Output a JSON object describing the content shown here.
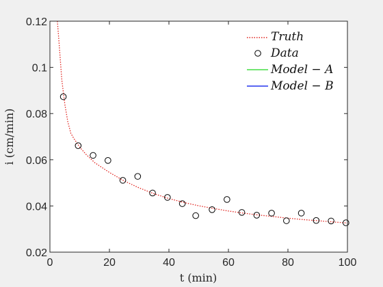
{
  "chart_data": {
    "type": "line",
    "xlabel": "t (min)",
    "ylabel": "i (cm/min)",
    "xlim": [
      0,
      100
    ],
    "ylim": [
      0.02,
      0.12
    ],
    "x_ticks": [
      0,
      20,
      40,
      60,
      80,
      100
    ],
    "y_ticks": [
      0.02,
      0.04,
      0.06,
      0.08,
      0.1,
      0.12
    ],
    "x_tick_labels": [
      "0",
      "20",
      "40",
      "60",
      "80",
      "100"
    ],
    "y_tick_labels": [
      "0.02",
      "0.04",
      "0.06",
      "0.08",
      "0.1",
      "0.12"
    ],
    "grid": false,
    "legend_position": "top-right",
    "series": [
      {
        "name": "Truth",
        "style": "dotted-line",
        "color": "#e0201b",
        "x": [
          2.5,
          3,
          4,
          5,
          6,
          7,
          8,
          10,
          12,
          15,
          20,
          25,
          30,
          35,
          40,
          45,
          50,
          55,
          60,
          65,
          70,
          75,
          80,
          85,
          90,
          95,
          100
        ],
        "y": [
          0.12,
          0.112,
          0.0945,
          0.084,
          0.0765,
          0.0715,
          0.0693,
          0.0655,
          0.0625,
          0.0588,
          0.0545,
          0.0508,
          0.0478,
          0.0453,
          0.0432,
          0.0415,
          0.0401,
          0.0389,
          0.0378,
          0.0369,
          0.0361,
          0.0354,
          0.0347,
          0.0341,
          0.0336,
          0.0331,
          0.0326
        ]
      },
      {
        "name": "Data",
        "style": "open-circle-markers",
        "color": "#000000",
        "x": [
          4.5,
          9.5,
          14.5,
          19.5,
          24.5,
          29.5,
          34.5,
          39.5,
          44.5,
          49,
          54.5,
          59.5,
          64.5,
          69.5,
          74.5,
          79.5,
          84.5,
          89.5,
          94.5,
          99.5
        ],
        "y": [
          0.0873,
          0.0661,
          0.0619,
          0.0597,
          0.0511,
          0.0528,
          0.0456,
          0.0437,
          0.041,
          0.0358,
          0.0384,
          0.0428,
          0.0372,
          0.036,
          0.0369,
          0.0336,
          0.0369,
          0.0337,
          0.0335,
          0.0327
        ]
      },
      {
        "name": "Model − A",
        "style": "solid-line",
        "color": "#44dd44",
        "x": [],
        "y": []
      },
      {
        "name": "Model − B",
        "style": "solid-line",
        "color": "#2233ee",
        "x": [],
        "y": []
      }
    ]
  }
}
